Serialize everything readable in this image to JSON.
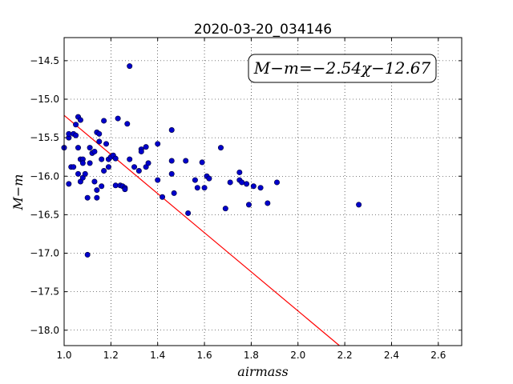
{
  "chart_data": {
    "type": "scatter",
    "title": "2020-03-20_034146",
    "xlabel": "airmass",
    "ylabel": "M−m",
    "xlim": [
      1.0,
      2.7
    ],
    "ylim": [
      -14.2,
      -18.2
    ],
    "y_inverted": true,
    "grid": true,
    "x_ticks": [
      "1.0",
      "1.2",
      "1.4",
      "1.6",
      "1.8",
      "2.0",
      "2.2",
      "2.4",
      "2.6"
    ],
    "x_tick_values": [
      1.0,
      1.2,
      1.4,
      1.6,
      1.8,
      2.0,
      2.2,
      2.4,
      2.6
    ],
    "y_ticks": [
      "−14.5",
      "−15.0",
      "−15.5",
      "−16.0",
      "−16.5",
      "−17.0",
      "−17.5",
      "−18.0"
    ],
    "y_tick_values": [
      -14.5,
      -15.0,
      -15.5,
      -16.0,
      -16.5,
      -17.0,
      -17.5,
      -18.0
    ],
    "annotation": "M−m=−2.54χ−12.67",
    "annotation_position": "top-right",
    "fit_line": {
      "slope": -2.54,
      "intercept": -12.67,
      "color": "#ff0000"
    },
    "point_color": "#0000cc",
    "points": [
      [
        1.0,
        -15.63
      ],
      [
        1.02,
        -15.5
      ],
      [
        1.02,
        -15.45
      ],
      [
        1.02,
        -16.1
      ],
      [
        1.03,
        -15.88
      ],
      [
        1.04,
        -15.45
      ],
      [
        1.04,
        -15.88
      ],
      [
        1.05,
        -15.33
      ],
      [
        1.05,
        -15.47
      ],
      [
        1.06,
        -15.23
      ],
      [
        1.06,
        -15.63
      ],
      [
        1.06,
        -15.97
      ],
      [
        1.07,
        -15.78
      ],
      [
        1.07,
        -16.07
      ],
      [
        1.07,
        -15.27
      ],
      [
        1.08,
        -15.78
      ],
      [
        1.08,
        -15.83
      ],
      [
        1.08,
        -16.02
      ],
      [
        1.09,
        -15.97
      ],
      [
        1.1,
        -16.28
      ],
      [
        1.1,
        -17.02
      ],
      [
        1.11,
        -15.83
      ],
      [
        1.11,
        -15.63
      ],
      [
        1.12,
        -15.7
      ],
      [
        1.13,
        -15.68
      ],
      [
        1.13,
        -16.07
      ],
      [
        1.14,
        -15.43
      ],
      [
        1.14,
        -16.18
      ],
      [
        1.14,
        -16.28
      ],
      [
        1.15,
        -15.45
      ],
      [
        1.15,
        -15.55
      ],
      [
        1.16,
        -16.13
      ],
      [
        1.16,
        -15.78
      ],
      [
        1.17,
        -15.28
      ],
      [
        1.17,
        -15.93
      ],
      [
        1.18,
        -15.58
      ],
      [
        1.19,
        -15.88
      ],
      [
        1.19,
        -15.78
      ],
      [
        1.2,
        -15.75
      ],
      [
        1.21,
        -15.73
      ],
      [
        1.22,
        -15.77
      ],
      [
        1.22,
        -16.12
      ],
      [
        1.23,
        -15.25
      ],
      [
        1.24,
        -16.12
      ],
      [
        1.25,
        -16.13
      ],
      [
        1.26,
        -16.15
      ],
      [
        1.26,
        -16.17
      ],
      [
        1.27,
        -15.32
      ],
      [
        1.28,
        -14.57
      ],
      [
        1.28,
        -15.78
      ],
      [
        1.3,
        -15.88
      ],
      [
        1.32,
        -15.93
      ],
      [
        1.33,
        -15.65
      ],
      [
        1.33,
        -15.68
      ],
      [
        1.35,
        -15.62
      ],
      [
        1.35,
        -15.88
      ],
      [
        1.36,
        -15.83
      ],
      [
        1.4,
        -16.05
      ],
      [
        1.4,
        -15.58
      ],
      [
        1.42,
        -16.27
      ],
      [
        1.46,
        -15.97
      ],
      [
        1.46,
        -15.4
      ],
      [
        1.46,
        -15.8
      ],
      [
        1.47,
        -16.22
      ],
      [
        1.52,
        -15.8
      ],
      [
        1.53,
        -16.48
      ],
      [
        1.56,
        -16.05
      ],
      [
        1.57,
        -16.15
      ],
      [
        1.59,
        -15.82
      ],
      [
        1.6,
        -16.15
      ],
      [
        1.61,
        -16.0
      ],
      [
        1.62,
        -16.03
      ],
      [
        1.67,
        -15.63
      ],
      [
        1.69,
        -16.42
      ],
      [
        1.71,
        -16.08
      ],
      [
        1.75,
        -15.95
      ],
      [
        1.75,
        -16.05
      ],
      [
        1.76,
        -16.08
      ],
      [
        1.78,
        -16.1
      ],
      [
        1.79,
        -16.37
      ],
      [
        1.81,
        -16.13
      ],
      [
        1.84,
        -16.15
      ],
      [
        1.87,
        -16.35
      ],
      [
        1.91,
        -16.08
      ],
      [
        2.26,
        -16.37
      ]
    ]
  }
}
